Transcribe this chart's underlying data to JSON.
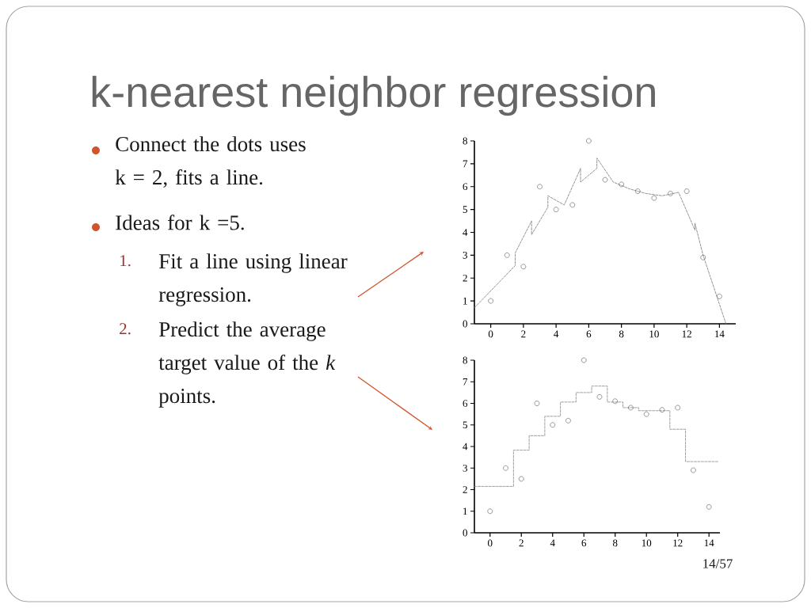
{
  "chart_data": [
    {
      "type": "scatter",
      "title": "k-nearest neighbor regression",
      "annotations": [
        "Connect the dots uses k = 2, fits a line.",
        "Ideas for k =5.",
        "1.",
        "Fit a line using linear regression.",
        "2.",
        "Predict the average target value of the *k* points."
      ],
      "series": [
        {
          "type": "scatter",
          "marker": "circle",
          "color": "#555555",
          "x": [
            0,
            1,
            2,
            3,
            4,
            5,
            6,
            7,
            8,
            9,
            10,
            11,
            12,
            13,
            14
          ],
          "values": [
            1,
            3,
            2.5,
            6,
            5,
            5.2,
            8,
            6.3,
            6.1,
            5.8,
            5.5,
            5.7,
            5.8,
            2.9,
            1.2
          ]
        },
        {
          "type": "line",
          "marker": "none",
          "line_style": "dashed",
          "color": "#777777",
          "x": [
            -1,
            1.5,
            1.5,
            2.5,
            2.5,
            3.5,
            3.5,
            4.5,
            5.5,
            5.5,
            6.5,
            6.5,
            7.5,
            8.5,
            9.5,
            10.5,
            11.5,
            12.5,
            12.5,
            13,
            14.4
          ],
          "values": [
            0.7,
            2.55,
            3.1,
            4.5,
            3.9,
            5.1,
            5.6,
            5.2,
            6.8,
            6.2,
            6.8,
            7.25,
            6.2,
            5.9,
            5.7,
            5.6,
            5.75,
            4.1,
            4.4,
            3,
            0
          ]
        }
      ],
      "xlim": [
        -1,
        15
      ],
      "ylim": [
        0,
        8
      ],
      "xticks": [
        0,
        2,
        4,
        6,
        8,
        10,
        12,
        14
      ],
      "yticks": [
        0,
        1,
        2,
        3,
        4,
        5,
        6,
        7,
        8
      ]
    },
    {
      "type": "scatter",
      "annotations": [
        "14/57"
      ],
      "series": [
        {
          "type": "scatter",
          "marker": "circle",
          "color": "#555555",
          "x": [
            0,
            1,
            2,
            3,
            4,
            5,
            6,
            7,
            8,
            9,
            10,
            11,
            12,
            13,
            14
          ],
          "values": [
            1,
            3,
            2.5,
            6,
            5,
            5.2,
            8,
            6.3,
            6.1,
            5.8,
            5.5,
            5.7,
            5.8,
            2.9,
            1.2
          ]
        },
        {
          "type": "step",
          "marker": "none",
          "line_style": "dashed",
          "color": "#888888",
          "x": [
            -1,
            1.5,
            2.5,
            3.5,
            4.5,
            5.5,
            6.5,
            7.5,
            8.5,
            9.5,
            11.5,
            12.5,
            14.6
          ],
          "values": [
            2.15,
            3.83,
            4.5,
            5.4,
            6.06,
            6.5,
            6.8,
            6.06,
            5.8,
            5.66,
            4.8,
            3.3,
            3.3
          ]
        }
      ],
      "xlim": [
        -1,
        14.7
      ],
      "ylim": [
        0,
        8
      ],
      "xticks": [
        0,
        2,
        4,
        6,
        8,
        10,
        12,
        14
      ],
      "yticks": [
        0,
        1,
        2,
        3,
        4,
        5,
        6,
        7,
        8
      ]
    }
  ]
}
